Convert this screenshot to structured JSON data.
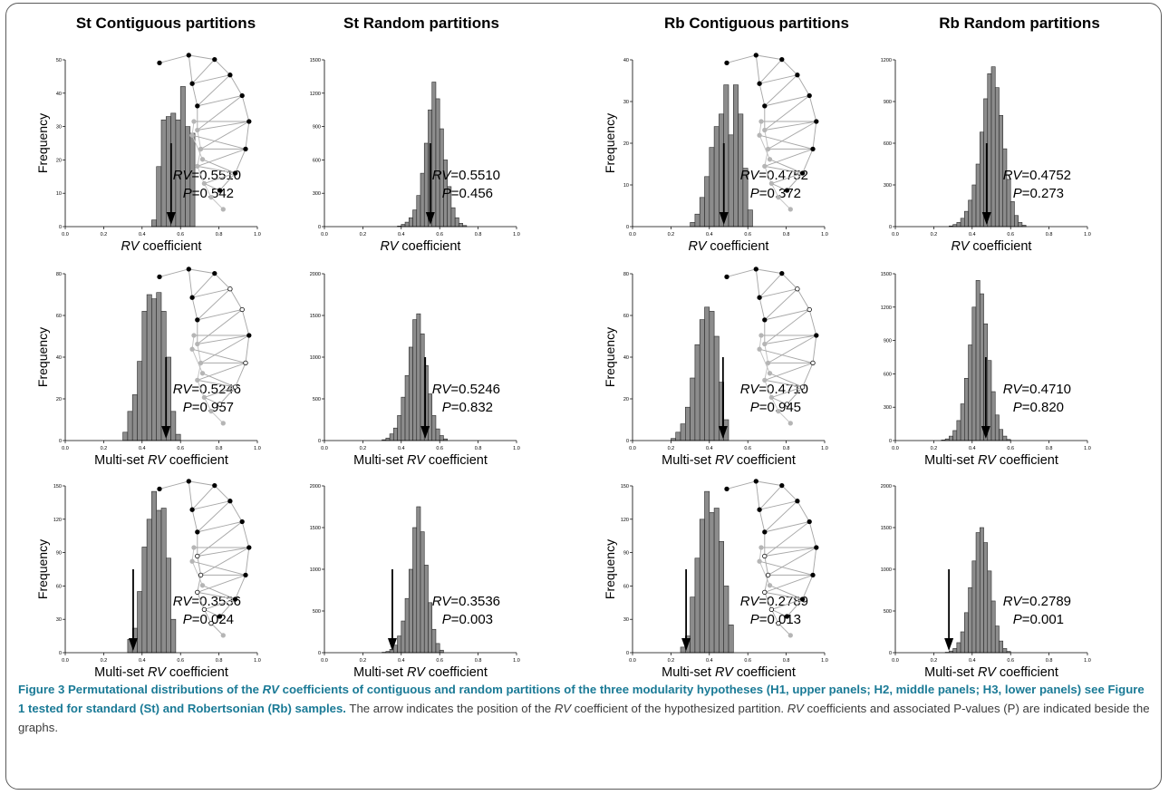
{
  "column_titles": [
    "St Contiguous partitions",
    "St Random partitions",
    "Rb Contiguous partitions",
    "Rb Random partitions"
  ],
  "ylabel": "Frequency",
  "xlabels": {
    "rv": "RV coefficient",
    "multi": "Multi-set RV coefficient"
  },
  "caption": {
    "label": "Figure 3",
    "title_a": "Permutational distributions of the ",
    "title_rv": "RV",
    "title_b": " coefficients of contiguous and random partitions of the three modularity hypotheses (H1, upper panels; H2, middle panels; H3, lower panels) see Figure 1 tested for standard (St) and Robertsonian (Rb) samples.",
    "body_a": " The arrow indicates the position of the ",
    "body_rv1": "RV",
    "body_b": " coefficient of the hypothesized partition. ",
    "body_rv2": "RV",
    "body_c": " coefficients and associated P-values (P) are indicated beside the graphs."
  },
  "chart_data": [
    {
      "type": "bar",
      "panel": "St Contiguous H1",
      "xlabel": "RV coefficient",
      "ylabel": "Frequency",
      "xlim": [
        0,
        1
      ],
      "xticks": [
        0.0,
        0.2,
        0.4,
        0.6,
        0.8,
        1.0
      ],
      "ylim": [
        0,
        50
      ],
      "yticks": [
        0,
        10,
        20,
        30,
        40,
        50
      ],
      "bin_width": 0.025,
      "bins": [
        0.45,
        0.475,
        0.5,
        0.525,
        0.55,
        0.575,
        0.6,
        0.625,
        0.65
      ],
      "values": [
        2,
        18,
        32,
        33,
        34,
        32,
        42,
        30,
        28
      ],
      "rv": "0.5510",
      "p": "0.542",
      "rv_value": 0.551,
      "inset": "h1"
    },
    {
      "type": "bar",
      "panel": "St Random H1",
      "xlabel": "RV coefficient",
      "ylabel": "",
      "xlim": [
        0,
        1
      ],
      "xticks": [
        0.0,
        0.2,
        0.4,
        0.6,
        0.8,
        1.0
      ],
      "ylim": [
        0,
        1500
      ],
      "yticks": [
        0,
        300,
        600,
        900,
        1200,
        1500
      ],
      "bin_width": 0.02,
      "bins": [
        0.38,
        0.4,
        0.42,
        0.44,
        0.46,
        0.48,
        0.5,
        0.52,
        0.54,
        0.56,
        0.58,
        0.6,
        0.62,
        0.64,
        0.66,
        0.68,
        0.7,
        0.72
      ],
      "values": [
        5,
        20,
        40,
        80,
        150,
        280,
        480,
        750,
        1050,
        1300,
        1150,
        880,
        600,
        360,
        170,
        80,
        30,
        10
      ],
      "rv": "0.5510",
      "p": "0.456",
      "rv_value": 0.551,
      "inset": ""
    },
    {
      "type": "bar",
      "panel": "Rb Contiguous H1",
      "xlabel": "RV coefficient",
      "ylabel": "Frequency",
      "xlim": [
        0,
        1
      ],
      "xticks": [
        0.0,
        0.2,
        0.4,
        0.6,
        0.8,
        1.0
      ],
      "ylim": [
        0,
        40
      ],
      "yticks": [
        0,
        10,
        20,
        30,
        40
      ],
      "bin_width": 0.025,
      "bins": [
        0.3,
        0.325,
        0.35,
        0.375,
        0.4,
        0.425,
        0.45,
        0.475,
        0.5,
        0.525,
        0.55,
        0.575,
        0.6
      ],
      "values": [
        1,
        3,
        7,
        12,
        19,
        24,
        27,
        34,
        22,
        34,
        27,
        14,
        4
      ],
      "rv": "0.4752",
      "p": "0.372",
      "rv_value": 0.4752,
      "inset": "h1"
    },
    {
      "type": "bar",
      "panel": "Rb Random H1",
      "xlabel": "RV coefficient",
      "ylabel": "",
      "xlim": [
        0,
        1
      ],
      "xticks": [
        0.0,
        0.2,
        0.4,
        0.6,
        0.8,
        1.0
      ],
      "ylim": [
        0,
        1200
      ],
      "yticks": [
        0,
        300,
        600,
        900,
        1200
      ],
      "bin_width": 0.02,
      "bins": [
        0.28,
        0.3,
        0.32,
        0.34,
        0.36,
        0.38,
        0.4,
        0.42,
        0.44,
        0.46,
        0.48,
        0.5,
        0.52,
        0.54,
        0.56,
        0.58,
        0.6,
        0.62,
        0.64,
        0.66
      ],
      "values": [
        5,
        15,
        30,
        60,
        110,
        190,
        300,
        450,
        680,
        920,
        1100,
        1150,
        1000,
        800,
        560,
        340,
        180,
        80,
        30,
        10
      ],
      "rv": "0.4752",
      "p": "0.273",
      "rv_value": 0.4752,
      "inset": ""
    },
    {
      "type": "bar",
      "panel": "St Contiguous H2",
      "xlabel": "Multi-set RV coefficient",
      "ylabel": "Frequency",
      "xlim": [
        0,
        1
      ],
      "xticks": [
        0.0,
        0.2,
        0.4,
        0.6,
        0.8,
        1.0
      ],
      "ylim": [
        0,
        80
      ],
      "yticks": [
        0,
        20,
        40,
        60,
        80
      ],
      "bin_width": 0.025,
      "bins": [
        0.3,
        0.325,
        0.35,
        0.375,
        0.4,
        0.425,
        0.45,
        0.475,
        0.5,
        0.525,
        0.55,
        0.575
      ],
      "values": [
        4,
        14,
        22,
        38,
        62,
        70,
        68,
        71,
        62,
        40,
        14,
        3
      ],
      "rv": "0.5246",
      "p": "0.957",
      "rv_value": 0.5246,
      "inset": "h2"
    },
    {
      "type": "bar",
      "panel": "St Random H2",
      "xlabel": "Multi-set RV coefficient",
      "ylabel": "",
      "xlim": [
        0,
        1
      ],
      "xticks": [
        0.0,
        0.2,
        0.4,
        0.6,
        0.8,
        1.0
      ],
      "ylim": [
        0,
        2000
      ],
      "yticks": [
        0,
        500,
        1000,
        1500,
        2000
      ],
      "bin_width": 0.02,
      "bins": [
        0.3,
        0.32,
        0.34,
        0.36,
        0.38,
        0.4,
        0.42,
        0.44,
        0.46,
        0.48,
        0.5,
        0.52,
        0.54,
        0.56,
        0.58,
        0.6,
        0.62
      ],
      "values": [
        10,
        30,
        80,
        150,
        300,
        520,
        780,
        1120,
        1450,
        1520,
        1280,
        900,
        560,
        300,
        140,
        60,
        20
      ],
      "rv": "0.5246",
      "p": "0.832",
      "rv_value": 0.5246,
      "inset": ""
    },
    {
      "type": "bar",
      "panel": "Rb Contiguous H2",
      "xlabel": "Multi-set RV coefficient",
      "ylabel": "Frequency",
      "xlim": [
        0,
        1
      ],
      "xticks": [
        0.0,
        0.2,
        0.4,
        0.6,
        0.8,
        1.0
      ],
      "ylim": [
        0,
        80
      ],
      "yticks": [
        0,
        20,
        40,
        60,
        80
      ],
      "bin_width": 0.025,
      "bins": [
        0.2,
        0.225,
        0.25,
        0.275,
        0.3,
        0.325,
        0.35,
        0.375,
        0.4,
        0.425,
        0.45,
        0.475
      ],
      "values": [
        1,
        4,
        8,
        16,
        30,
        46,
        58,
        64,
        62,
        50,
        28,
        10
      ],
      "rv": "0.4710",
      "p": "0.945",
      "rv_value": 0.471,
      "inset": "h2"
    },
    {
      "type": "bar",
      "panel": "Rb Random H2",
      "xlabel": "Multi-set RV coefficient",
      "ylabel": "",
      "xlim": [
        0,
        1
      ],
      "xticks": [
        0.0,
        0.2,
        0.4,
        0.6,
        0.8,
        1.0
      ],
      "ylim": [
        0,
        1500
      ],
      "yticks": [
        0,
        300,
        600,
        900,
        1200,
        1500
      ],
      "bin_width": 0.02,
      "bins": [
        0.24,
        0.26,
        0.28,
        0.3,
        0.32,
        0.34,
        0.36,
        0.38,
        0.4,
        0.42,
        0.44,
        0.46,
        0.48,
        0.5,
        0.52,
        0.54,
        0.56,
        0.58
      ],
      "values": [
        5,
        15,
        40,
        90,
        180,
        330,
        560,
        860,
        1200,
        1440,
        1320,
        1050,
        720,
        440,
        230,
        100,
        40,
        10
      ],
      "rv": "0.4710",
      "p": "0.820",
      "rv_value": 0.471,
      "inset": ""
    },
    {
      "type": "bar",
      "panel": "St Contiguous H3",
      "xlabel": "Multi-set RV coefficient",
      "ylabel": "Frequency",
      "xlim": [
        0,
        1
      ],
      "xticks": [
        0.0,
        0.2,
        0.4,
        0.6,
        0.8,
        1.0
      ],
      "ylim": [
        0,
        150
      ],
      "yticks": [
        0,
        30,
        60,
        90,
        120,
        150
      ],
      "bin_width": 0.025,
      "bins": [
        0.325,
        0.35,
        0.375,
        0.4,
        0.425,
        0.45,
        0.475,
        0.5,
        0.525,
        0.55
      ],
      "values": [
        12,
        22,
        55,
        95,
        120,
        145,
        128,
        130,
        85,
        30
      ],
      "rv": "0.3536",
      "p": "0.024",
      "rv_value": 0.3536,
      "inset": "h3"
    },
    {
      "type": "bar",
      "panel": "St Random H3",
      "xlabel": "Multi-set RV coefficient",
      "ylabel": "",
      "xlim": [
        0,
        1
      ],
      "xticks": [
        0.0,
        0.2,
        0.4,
        0.6,
        0.8,
        1.0
      ],
      "ylim": [
        0,
        2000
      ],
      "yticks": [
        0,
        500,
        1000,
        1500,
        2000
      ],
      "bin_width": 0.02,
      "bins": [
        0.3,
        0.32,
        0.34,
        0.36,
        0.38,
        0.4,
        0.42,
        0.44,
        0.46,
        0.48,
        0.5,
        0.52,
        0.54,
        0.56,
        0.58,
        0.6
      ],
      "values": [
        5,
        15,
        40,
        90,
        200,
        380,
        650,
        1000,
        1500,
        1750,
        1450,
        1050,
        600,
        280,
        110,
        30
      ],
      "rv": "0.3536",
      "p": "0.003",
      "rv_value": 0.3536,
      "inset": ""
    },
    {
      "type": "bar",
      "panel": "Rb Contiguous H3",
      "xlabel": "Multi-set RV coefficient",
      "ylabel": "Frequency",
      "xlim": [
        0,
        1
      ],
      "xticks": [
        0.0,
        0.2,
        0.4,
        0.6,
        0.8,
        1.0
      ],
      "ylim": [
        0,
        150
      ],
      "yticks": [
        0,
        30,
        60,
        90,
        120,
        150
      ],
      "bin_width": 0.025,
      "bins": [
        0.25,
        0.275,
        0.3,
        0.325,
        0.35,
        0.375,
        0.4,
        0.425,
        0.45,
        0.475,
        0.5
      ],
      "values": [
        5,
        15,
        50,
        85,
        120,
        145,
        126,
        130,
        100,
        60,
        25
      ],
      "rv": "0.2789",
      "p": "0.013",
      "rv_value": 0.2789,
      "inset": "h3"
    },
    {
      "type": "bar",
      "panel": "Rb Random H3",
      "xlabel": "Multi-set RV coefficient",
      "ylabel": "",
      "xlim": [
        0,
        1
      ],
      "xticks": [
        0.0,
        0.2,
        0.4,
        0.6,
        0.8,
        1.0
      ],
      "ylim": [
        0,
        2000
      ],
      "yticks": [
        0,
        500,
        1000,
        1500,
        2000
      ],
      "bin_width": 0.02,
      "bins": [
        0.26,
        0.28,
        0.3,
        0.32,
        0.34,
        0.36,
        0.38,
        0.4,
        0.42,
        0.44,
        0.46,
        0.48,
        0.5,
        0.52,
        0.54,
        0.56,
        0.58
      ],
      "values": [
        5,
        20,
        50,
        120,
        250,
        480,
        780,
        1100,
        1440,
        1500,
        1320,
        980,
        620,
        320,
        140,
        50,
        15
      ],
      "rv": "0.2789",
      "p": "0.001",
      "rv_value": 0.2789,
      "inset": ""
    }
  ]
}
